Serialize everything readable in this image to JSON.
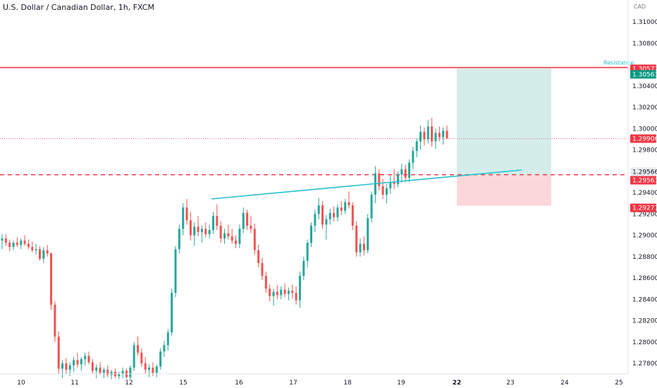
{
  "chart_data": {
    "type": "candlestick",
    "title": "U.S. Dollar / Canadian Dollar, 1h, FXCM",
    "currency_label": "CAD",
    "y_ticks": [
      "1.31000",
      "1.30800",
      "1.30400",
      "1.30200",
      "1.30000",
      "1.29800",
      "1.29400",
      "1.29200",
      "1.29000",
      "1.28800",
      "1.28600",
      "1.28400",
      "1.28200",
      "1.28000",
      "1.27800"
    ],
    "x_ticks": [
      "10",
      "11",
      "12",
      "15",
      "16",
      "17",
      "18",
      "19",
      "22",
      "23",
      "24",
      "25"
    ],
    "x_tick_bold": "22",
    "ylim": [
      1.2765,
      1.3115
    ],
    "resistance": {
      "label": "Resistance",
      "value": 1.30572,
      "value_label": "1.30572"
    },
    "take_profit": {
      "value": 1.30563,
      "value_label": "1.30563"
    },
    "entry": {
      "value": 1.29561,
      "value_label": "1.29561"
    },
    "last_price": {
      "value": 1.29906,
      "value_label": "1.29906"
    },
    "stop_loss": {
      "value": 1.29277,
      "value_label": "1.29277"
    },
    "trendline_value_label": "1.29566",
    "trendline": {
      "from": [
        1.2932
      ],
      "to": [
        1.296
      ]
    },
    "colors": {
      "up": "#26a69a",
      "down": "#ef5350",
      "resistance": "#f23645",
      "trend": "#22c1d1"
    },
    "candles": [
      [
        1.2895,
        1.2901,
        1.2887,
        1.2897
      ],
      [
        1.2897,
        1.2901,
        1.289,
        1.2893
      ],
      [
        1.2893,
        1.2896,
        1.2885,
        1.2889
      ],
      [
        1.2889,
        1.2895,
        1.2886,
        1.2893
      ],
      [
        1.2893,
        1.2898,
        1.2889,
        1.2891
      ],
      [
        1.2891,
        1.2897,
        1.2887,
        1.2895
      ],
      [
        1.2895,
        1.29,
        1.289,
        1.2892
      ],
      [
        1.2892,
        1.2896,
        1.2887,
        1.2889
      ],
      [
        1.2889,
        1.2894,
        1.2884,
        1.2886
      ],
      [
        1.2886,
        1.2892,
        1.2882,
        1.2887
      ],
      [
        1.2887,
        1.289,
        1.2876,
        1.2878
      ],
      [
        1.2878,
        1.2889,
        1.2874,
        1.2886
      ],
      [
        1.2886,
        1.2891,
        1.288,
        1.2883
      ],
      [
        1.2883,
        1.2884,
        1.283,
        1.2835
      ],
      [
        1.2835,
        1.2838,
        1.28,
        1.2805
      ],
      [
        1.2805,
        1.281,
        1.277,
        1.2775
      ],
      [
        1.2775,
        1.2783,
        1.2766,
        1.278
      ],
      [
        1.278,
        1.2785,
        1.277,
        1.2774
      ],
      [
        1.2774,
        1.2781,
        1.2768,
        1.2778
      ],
      [
        1.2778,
        1.2786,
        1.2772,
        1.2783
      ],
      [
        1.2783,
        1.279,
        1.2776,
        1.2779
      ],
      [
        1.2779,
        1.2786,
        1.2773,
        1.2784
      ],
      [
        1.2784,
        1.279,
        1.2778,
        1.2787
      ],
      [
        1.2787,
        1.2791,
        1.2779,
        1.2781
      ],
      [
        1.2781,
        1.2784,
        1.277,
        1.2773
      ],
      [
        1.2773,
        1.2779,
        1.2766,
        1.2776
      ],
      [
        1.2776,
        1.2781,
        1.2769,
        1.2771
      ],
      [
        1.2771,
        1.2776,
        1.2766,
        1.2774
      ],
      [
        1.2774,
        1.2778,
        1.2767,
        1.2769
      ],
      [
        1.2769,
        1.2774,
        1.2765,
        1.2772
      ],
      [
        1.2772,
        1.2775,
        1.2766,
        1.2768
      ],
      [
        1.2768,
        1.2772,
        1.2765,
        1.277
      ],
      [
        1.277,
        1.2776,
        1.2766,
        1.2773
      ],
      [
        1.2773,
        1.2775,
        1.2766,
        1.2767
      ],
      [
        1.2767,
        1.2778,
        1.2765,
        1.2776
      ],
      [
        1.2776,
        1.28,
        1.2773,
        1.2797
      ],
      [
        1.2797,
        1.2805,
        1.2787,
        1.279
      ],
      [
        1.279,
        1.2794,
        1.2777,
        1.278
      ],
      [
        1.278,
        1.2786,
        1.277,
        1.2774
      ],
      [
        1.2774,
        1.2779,
        1.2767,
        1.2776
      ],
      [
        1.2776,
        1.2781,
        1.2768,
        1.2771
      ],
      [
        1.2771,
        1.2779,
        1.2767,
        1.2777
      ],
      [
        1.2777,
        1.2794,
        1.2774,
        1.2791
      ],
      [
        1.2791,
        1.2801,
        1.2786,
        1.2797
      ],
      [
        1.2797,
        1.2812,
        1.2792,
        1.2809
      ],
      [
        1.2809,
        1.285,
        1.2806,
        1.2846
      ],
      [
        1.2846,
        1.289,
        1.2842,
        1.2887
      ],
      [
        1.2887,
        1.291,
        1.2883,
        1.2906
      ],
      [
        1.2906,
        1.293,
        1.29,
        1.2926
      ],
      [
        1.2926,
        1.2934,
        1.291,
        1.2914
      ],
      [
        1.2914,
        1.2922,
        1.2895,
        1.29
      ],
      [
        1.29,
        1.2912,
        1.289,
        1.2908
      ],
      [
        1.2908,
        1.2918,
        1.2899,
        1.2903
      ],
      [
        1.2903,
        1.2909,
        1.2893,
        1.2906
      ],
      [
        1.2906,
        1.2912,
        1.2898,
        1.2901
      ],
      [
        1.2901,
        1.291,
        1.2897,
        1.2905
      ],
      [
        1.2905,
        1.2922,
        1.2901,
        1.2918
      ],
      [
        1.2918,
        1.2929,
        1.2905,
        1.2909
      ],
      [
        1.2909,
        1.2913,
        1.2893,
        1.2897
      ],
      [
        1.2897,
        1.2906,
        1.2892,
        1.2902
      ],
      [
        1.2902,
        1.291,
        1.2896,
        1.2899
      ],
      [
        1.2899,
        1.2906,
        1.2892,
        1.2895
      ],
      [
        1.2895,
        1.29,
        1.2888,
        1.2892
      ],
      [
        1.2892,
        1.291,
        1.2888,
        1.2906
      ],
      [
        1.2906,
        1.2926,
        1.2902,
        1.2921
      ],
      [
        1.2921,
        1.2924,
        1.2905,
        1.2909
      ],
      [
        1.2909,
        1.2918,
        1.2902,
        1.2906
      ],
      [
        1.2906,
        1.2911,
        1.2882,
        1.2886
      ],
      [
        1.2886,
        1.2891,
        1.287,
        1.2874
      ],
      [
        1.2874,
        1.2879,
        1.2858,
        1.2862
      ],
      [
        1.2862,
        1.2866,
        1.2846,
        1.285
      ],
      [
        1.285,
        1.2854,
        1.2838,
        1.2843
      ],
      [
        1.2843,
        1.285,
        1.2834,
        1.2847
      ],
      [
        1.2847,
        1.2853,
        1.284,
        1.2844
      ],
      [
        1.2844,
        1.2852,
        1.284,
        1.2849
      ],
      [
        1.2849,
        1.2855,
        1.2842,
        1.2845
      ],
      [
        1.2845,
        1.2851,
        1.2839,
        1.2848
      ],
      [
        1.2848,
        1.2854,
        1.2841,
        1.2846
      ],
      [
        1.2846,
        1.2852,
        1.2835,
        1.2839
      ],
      [
        1.2839,
        1.2866,
        1.2832,
        1.2862
      ],
      [
        1.2862,
        1.288,
        1.2858,
        1.2876
      ],
      [
        1.2876,
        1.2896,
        1.287,
        1.2893
      ],
      [
        1.2893,
        1.2912,
        1.2889,
        1.2909
      ],
      [
        1.2909,
        1.2924,
        1.2903,
        1.292
      ],
      [
        1.292,
        1.2935,
        1.2915,
        1.2928
      ],
      [
        1.2928,
        1.2932,
        1.2906,
        1.291
      ],
      [
        1.291,
        1.2919,
        1.2896,
        1.2915
      ],
      [
        1.2915,
        1.2925,
        1.291,
        1.2921
      ],
      [
        1.2921,
        1.2927,
        1.2913,
        1.2917
      ],
      [
        1.2917,
        1.2929,
        1.2913,
        1.2926
      ],
      [
        1.2926,
        1.2932,
        1.2919,
        1.2923
      ],
      [
        1.2923,
        1.2934,
        1.292,
        1.2931
      ],
      [
        1.2931,
        1.2941,
        1.2925,
        1.2928
      ],
      [
        1.2928,
        1.2931,
        1.2905,
        1.2909
      ],
      [
        1.2909,
        1.2913,
        1.288,
        1.2884
      ],
      [
        1.2884,
        1.2897,
        1.288,
        1.2892
      ],
      [
        1.2892,
        1.2899,
        1.2881,
        1.2886
      ],
      [
        1.2886,
        1.292,
        1.2883,
        1.2916
      ],
      [
        1.2916,
        1.2941,
        1.2912,
        1.2938
      ],
      [
        1.2938,
        1.2965,
        1.293,
        1.2958
      ],
      [
        1.2958,
        1.2962,
        1.2942,
        1.2946
      ],
      [
        1.2946,
        1.2953,
        1.2934,
        1.2938
      ],
      [
        1.2938,
        1.2948,
        1.293,
        1.2944
      ],
      [
        1.2944,
        1.2956,
        1.2939,
        1.295
      ],
      [
        1.295,
        1.2962,
        1.2943,
        1.2948
      ],
      [
        1.2948,
        1.296,
        1.2945,
        1.2957
      ],
      [
        1.2957,
        1.2967,
        1.2949,
        1.2962
      ],
      [
        1.2962,
        1.2966,
        1.295,
        1.2954
      ],
      [
        1.2954,
        1.2971,
        1.295,
        1.2968
      ],
      [
        1.2968,
        1.2983,
        1.2962,
        1.2979
      ],
      [
        1.2979,
        1.2991,
        1.2973,
        1.2988
      ],
      [
        1.2988,
        1.3003,
        1.298,
        1.2997
      ],
      [
        1.2997,
        1.3001,
        1.2984,
        1.299
      ],
      [
        1.299,
        1.3008,
        1.2986,
        1.3002
      ],
      [
        1.3002,
        1.301,
        1.2983,
        1.2988
      ],
      [
        1.2988,
        1.3,
        1.2981,
        1.2996
      ],
      [
        1.2996,
        1.3002,
        1.2988,
        1.2992
      ],
      [
        1.2992,
        1.3001,
        1.2985,
        1.2998
      ],
      [
        1.2998,
        1.3003,
        1.299,
        1.2991
      ]
    ]
  }
}
